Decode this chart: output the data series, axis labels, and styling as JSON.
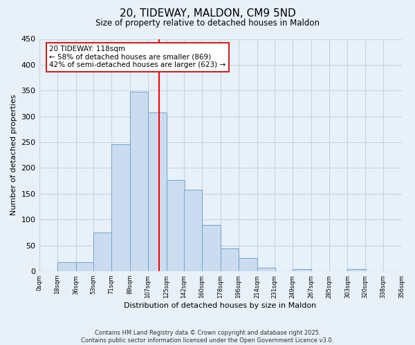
{
  "title": "20, TIDEWAY, MALDON, CM9 5ND",
  "subtitle": "Size of property relative to detached houses in Maldon",
  "xlabel": "Distribution of detached houses by size in Maldon",
  "ylabel": "Number of detached properties",
  "bar_color": "#ccdcf0",
  "bar_edge_color": "#7aaad0",
  "background_color": "#e8f0f8",
  "grid_color": "#c8d4e4",
  "vline_x": 118,
  "vline_color": "red",
  "annotation_line1": "20 TIDEWAY: 118sqm",
  "annotation_line2": "← 58% of detached houses are smaller (869)",
  "annotation_line3": "42% of semi-detached houses are larger (623) →",
  "footnote1": "Contains HM Land Registry data © Crown copyright and database right 2025.",
  "footnote2": "Contains public sector information licensed under the Open Government Licence v3.0.",
  "bin_edges": [
    0,
    18,
    36,
    53,
    71,
    89,
    107,
    125,
    142,
    160,
    178,
    196,
    214,
    231,
    249,
    267,
    285,
    303,
    320,
    338,
    356
  ],
  "bin_counts": [
    0,
    17,
    17,
    75,
    246,
    348,
    307,
    177,
    158,
    90,
    44,
    25,
    7,
    0,
    4,
    0,
    0,
    4,
    0,
    0
  ],
  "ylim": [
    0,
    450
  ],
  "yticks": [
    0,
    50,
    100,
    150,
    200,
    250,
    300,
    350,
    400,
    450
  ],
  "xtick_labels": [
    "0sqm",
    "18sqm",
    "36sqm",
    "53sqm",
    "71sqm",
    "89sqm",
    "107sqm",
    "125sqm",
    "142sqm",
    "160sqm",
    "178sqm",
    "196sqm",
    "214sqm",
    "231sqm",
    "249sqm",
    "267sqm",
    "285sqm",
    "303sqm",
    "320sqm",
    "338sqm",
    "356sqm"
  ]
}
